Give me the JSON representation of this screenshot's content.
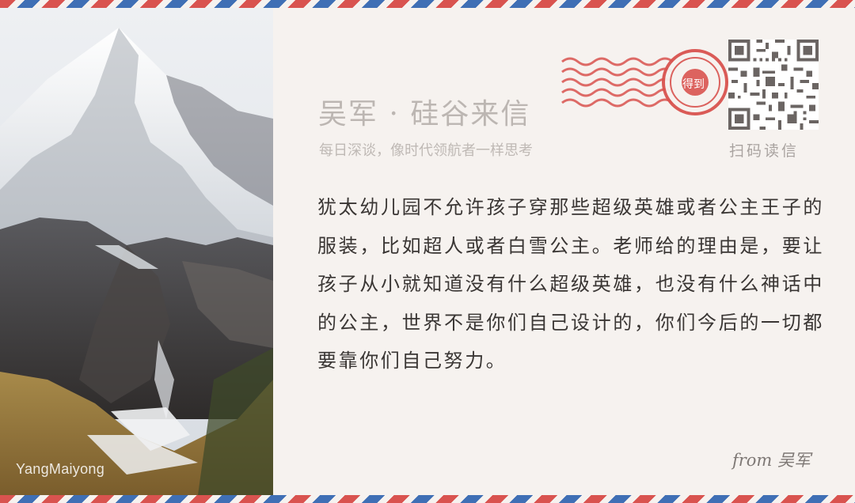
{
  "photo": {
    "credit": "YangMaiyong",
    "subject": "snow-mountain-photo"
  },
  "header": {
    "title": "吴军 · 硅谷来信",
    "subtitle": "每日深谈，像时代领航者一样思考"
  },
  "stamp": {
    "text": "得到",
    "color": "#d9534f"
  },
  "qr": {
    "label": "扫码读信"
  },
  "letter": {
    "body": "犹太幼儿园不允许孩子穿那些超级英雄或者公主王子的服装，比如超人或者白雪公主。老师给的理由是，要让孩子从小就知道没有什么超级英雄，也没有什么神话中的公主，世界不是你们自己设计的，你们今后的一切都要靠你们自己努力。",
    "signature": "from 吴军"
  },
  "colors": {
    "airmail_red": "#d9534f",
    "airmail_blue": "#3f6fb5",
    "paper": "#f6f2ef",
    "text": "#3a3634"
  }
}
